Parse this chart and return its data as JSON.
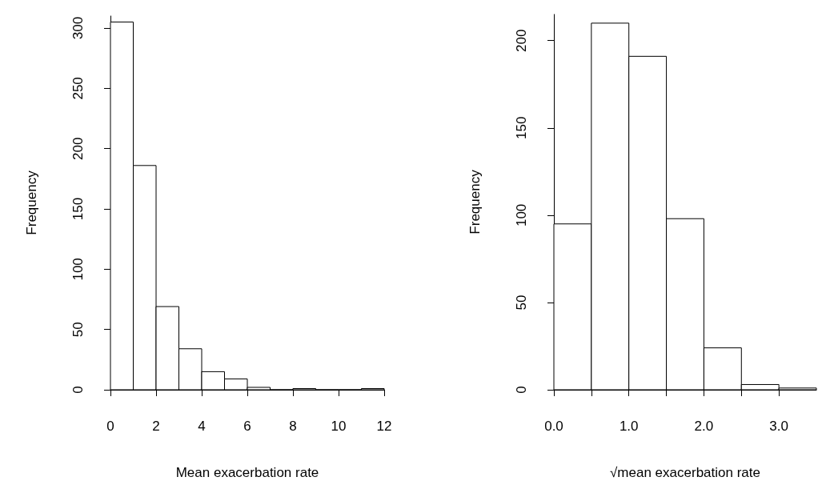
{
  "chart_data": [
    {
      "type": "histogram",
      "xlabel": "Mean exacerbation rate",
      "ylabel": "Frequency",
      "bins": [
        0,
        1,
        2,
        3,
        4,
        5,
        6,
        7,
        8,
        9,
        10,
        11,
        12
      ],
      "values": [
        305,
        186,
        69,
        34,
        15,
        9,
        2,
        0,
        1,
        0,
        0,
        1
      ],
      "color": "#ffffff",
      "xlim": [
        0,
        12
      ],
      "xticks": [
        0,
        2,
        4,
        6,
        8,
        10,
        12
      ],
      "ylim": [
        0,
        310
      ],
      "yticks": [
        0,
        50,
        100,
        150,
        200,
        250,
        300
      ],
      "grid": false
    },
    {
      "type": "histogram",
      "xlabel": "√mean exacerbation rate",
      "ylabel": "Frequency",
      "bins": [
        0,
        0.5,
        1,
        1.5,
        2,
        2.5,
        3,
        3.5
      ],
      "values": [
        95,
        210,
        191,
        98,
        24,
        3,
        1
      ],
      "color": "#ffffff",
      "xlim": [
        0,
        3.5
      ],
      "xticks": [
        {
          "value": 0,
          "label": "0.0"
        },
        {
          "value": 0.5,
          "label": null
        },
        {
          "value": 1,
          "label": "1.0"
        },
        {
          "value": 1.5,
          "label": null
        },
        {
          "value": 2,
          "label": "2.0"
        },
        {
          "value": 2.5,
          "label": null
        },
        {
          "value": 3,
          "label": "3.0"
        }
      ],
      "ylim": [
        0,
        215
      ],
      "yticks": [
        0,
        50,
        100,
        150,
        200
      ],
      "grid": false
    }
  ]
}
